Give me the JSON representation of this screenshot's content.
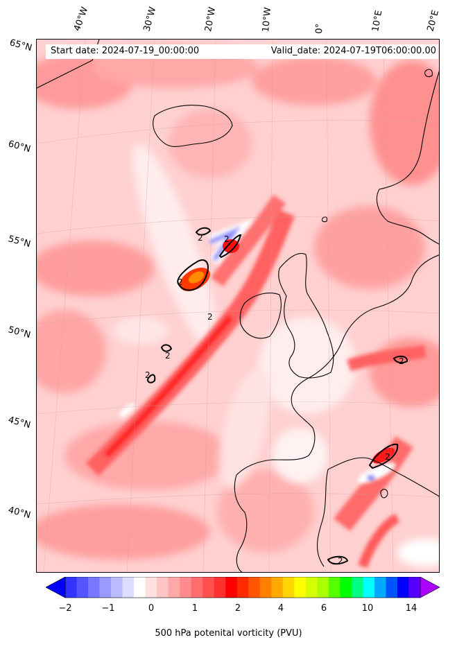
{
  "header": {
    "start_date": "Start date: 2024-07-19_00:00:00",
    "valid_date": "Valid_date: 2024-07-19T06:00:00.00"
  },
  "longitude_labels": [
    "40°W",
    "30°W",
    "20°W",
    "10°W",
    "0°",
    "10°E",
    "20°E"
  ],
  "latitude_labels": [
    "65°N",
    "60°N",
    "55°N",
    "50°N",
    "45°N",
    "40°N"
  ],
  "contour_label": "2",
  "colorbar": {
    "label": "500 hPa potenital vorticity (PVU)",
    "ticks": [
      "−2",
      "−1",
      "0",
      "1",
      "2",
      "4",
      "6",
      "10",
      "14"
    ],
    "colors": [
      "#0000ff",
      "#3333ff",
      "#5555ff",
      "#7777ff",
      "#9999ff",
      "#bbbbff",
      "#ddddff",
      "#ffffff",
      "#ffe0e0",
      "#ffc4c4",
      "#ffa8a8",
      "#ff8c8c",
      "#ff6e6e",
      "#ff5050",
      "#ff3030",
      "#ff0000",
      "#ff2a00",
      "#ff5500",
      "#ff8000",
      "#ffaa00",
      "#ffd500",
      "#ffff00",
      "#d5ff00",
      "#aaff00",
      "#55ff00",
      "#00ff00",
      "#00ff80",
      "#00ffff",
      "#00aaff",
      "#0055ff",
      "#0000ff",
      "#5500ff",
      "#aa00ff"
    ]
  }
}
